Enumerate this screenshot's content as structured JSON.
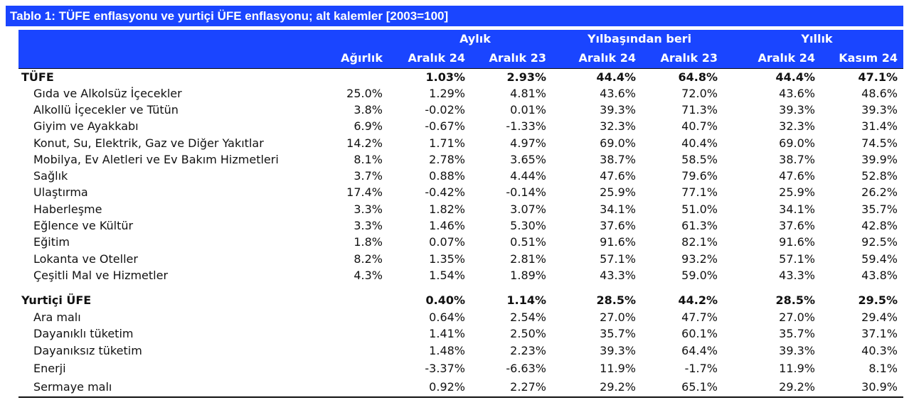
{
  "title": "Tablo 1: TÜFE enflasyonu ve yurtiçi ÜFE enflasyonu; alt kalemler [2003=100]",
  "groups": [
    "Aylık",
    "Yılbaşından beri",
    "Yıllık"
  ],
  "columns": [
    "Ağırlık",
    "Aralık 24",
    "Aralık 23",
    "Aralık 24",
    "Aralık 23",
    "Aralık 24",
    "Kasım 24"
  ],
  "rows": [
    {
      "label": "TÜFE",
      "bold": true,
      "indent": false,
      "cells": [
        "",
        "1.03%",
        "2.93%",
        "44.4%",
        "64.8%",
        "44.4%",
        "47.1%"
      ]
    },
    {
      "label": "Gıda ve Alkolsüz İçecekler",
      "bold": false,
      "indent": true,
      "cells": [
        "25.0%",
        "1.29%",
        "4.81%",
        "43.6%",
        "72.0%",
        "43.6%",
        "48.6%"
      ]
    },
    {
      "label": "Alkollü İçecekler ve Tütün",
      "bold": false,
      "indent": true,
      "cells": [
        "3.8%",
        "-0.02%",
        "0.01%",
        "39.3%",
        "71.3%",
        "39.3%",
        "39.3%"
      ]
    },
    {
      "label": "Giyim ve Ayakkabı",
      "bold": false,
      "indent": true,
      "cells": [
        "6.9%",
        "-0.67%",
        "-1.33%",
        "32.3%",
        "40.7%",
        "32.3%",
        "31.4%"
      ]
    },
    {
      "label": "Konut, Su, Elektrik, Gaz ve Diğer Yakıtlar",
      "bold": false,
      "indent": true,
      "cells": [
        "14.2%",
        "1.71%",
        "4.97%",
        "69.0%",
        "40.4%",
        "69.0%",
        "74.5%"
      ]
    },
    {
      "label": "Mobilya, Ev Aletleri ve Ev Bakım Hizmetleri",
      "bold": false,
      "indent": true,
      "cells": [
        "8.1%",
        "2.78%",
        "3.65%",
        "38.7%",
        "58.5%",
        "38.7%",
        "39.9%"
      ]
    },
    {
      "label": "Sağlık",
      "bold": false,
      "indent": true,
      "cells": [
        "3.7%",
        "0.88%",
        "4.44%",
        "47.6%",
        "79.6%",
        "47.6%",
        "52.8%"
      ]
    },
    {
      "label": "Ulaştırma",
      "bold": false,
      "indent": true,
      "cells": [
        "17.4%",
        "-0.42%",
        "-0.14%",
        "25.9%",
        "77.1%",
        "25.9%",
        "26.2%"
      ]
    },
    {
      "label": "Haberleşme",
      "bold": false,
      "indent": true,
      "cells": [
        "3.3%",
        "1.82%",
        "3.07%",
        "34.1%",
        "51.0%",
        "34.1%",
        "35.7%"
      ]
    },
    {
      "label": "Eğlence ve Kültür",
      "bold": false,
      "indent": true,
      "cells": [
        "3.3%",
        "1.46%",
        "5.30%",
        "37.6%",
        "61.3%",
        "37.6%",
        "42.8%"
      ]
    },
    {
      "label": "Eğitim",
      "bold": false,
      "indent": true,
      "cells": [
        "1.8%",
        "0.07%",
        "0.51%",
        "91.6%",
        "82.1%",
        "91.6%",
        "92.5%"
      ]
    },
    {
      "label": "Lokanta ve Oteller",
      "bold": false,
      "indent": true,
      "cells": [
        "8.2%",
        "1.35%",
        "2.81%",
        "57.1%",
        "93.2%",
        "57.1%",
        "59.4%"
      ]
    },
    {
      "label": "Çeşitli Mal ve Hizmetler",
      "bold": false,
      "indent": true,
      "cells": [
        "4.3%",
        "1.54%",
        "1.89%",
        "43.3%",
        "59.0%",
        "43.3%",
        "43.8%"
      ]
    },
    {
      "label": "Yurtiçi ÜFE",
      "bold": true,
      "indent": false,
      "cells": [
        "",
        "0.40%",
        "1.14%",
        "28.5%",
        "44.2%",
        "28.5%",
        "29.5%"
      ]
    },
    {
      "label": "Ara malı",
      "bold": false,
      "indent": true,
      "cells": [
        "",
        "0.64%",
        "2.54%",
        "27.0%",
        "47.7%",
        "27.0%",
        "29.4%"
      ]
    },
    {
      "label": "Dayanıklı tüketim",
      "bold": false,
      "indent": true,
      "cells": [
        "",
        "1.41%",
        "2.50%",
        "35.7%",
        "60.1%",
        "35.7%",
        "37.1%"
      ]
    },
    {
      "label": "Dayanıksız tüketim",
      "bold": false,
      "indent": true,
      "cells": [
        "",
        "1.48%",
        "2.23%",
        "39.3%",
        "64.4%",
        "39.3%",
        "40.3%"
      ]
    },
    {
      "label": "Enerji",
      "bold": false,
      "indent": true,
      "cells": [
        "",
        "-3.37%",
        "-6.63%",
        "11.9%",
        "-1.7%",
        "11.9%",
        "8.1%"
      ]
    },
    {
      "label": "Sermaye malı",
      "bold": false,
      "indent": true,
      "cells": [
        "",
        "0.92%",
        "2.27%",
        "29.2%",
        "65.1%",
        "29.2%",
        "30.9%"
      ]
    }
  ]
}
